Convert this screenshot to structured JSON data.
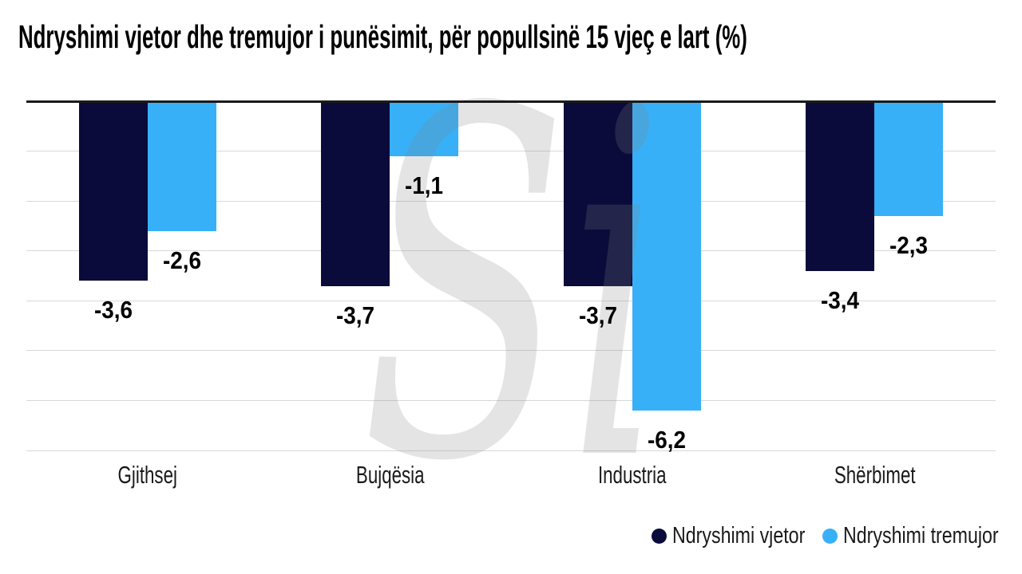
{
  "chart_data": {
    "type": "bar",
    "title": "Ndryshimi vjetor dhe tremujor i punësimit, për popullsinë 15 vjeç e lart (%)",
    "categories": [
      "Gjithsej",
      "Bujqësia",
      "Industria",
      "Shërbimet"
    ],
    "series": [
      {
        "name": "Ndryshimi vjetor",
        "color": "#0a0b3a",
        "values": [
          -3.6,
          -3.7,
          -3.7,
          -3.4
        ],
        "value_labels": [
          "-3,6",
          "-3,7",
          "-3,7",
          "-3,4"
        ]
      },
      {
        "name": "Ndryshimi tremujor",
        "color": "#38b0f8",
        "values": [
          -2.6,
          -1.1,
          -6.2,
          -2.3
        ],
        "value_labels": [
          "-2,6",
          "-1,1",
          "-6,2",
          "-2,3"
        ]
      }
    ],
    "ylim": [
      0,
      -7
    ],
    "grid_step": 1,
    "grid": true,
    "legend_position": "bottom-right",
    "watermark": "Si",
    "colors": {
      "grid": "#d8d8d8",
      "zero_line": "#1a1a1a",
      "value_label_text": "#000000",
      "axis_text": "#1a1a1a",
      "watermark": "rgba(130,130,130,0.22)"
    }
  }
}
